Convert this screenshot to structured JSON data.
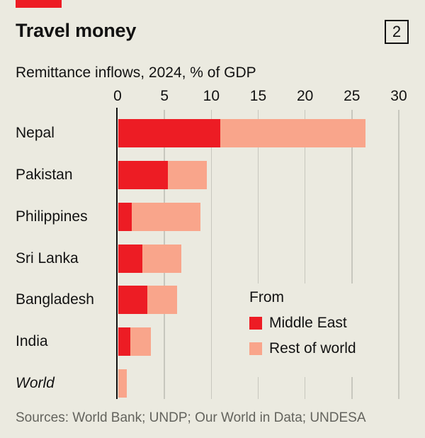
{
  "page": {
    "title": "Travel money",
    "subtitle": "Remittance inflows, 2024, % of GDP",
    "index_badge": "2",
    "sources": "Sources: World Bank; UNDP; Our World in Data; UNDESA"
  },
  "colors": {
    "background": "#ebeae0",
    "accent_red": "#ed1c24",
    "middle_east": "#ed1c24",
    "rest_of_world": "#f9a58b",
    "gridline": "#c7c7be",
    "axis": "#121212",
    "text": "#121212",
    "sources_text": "#63635d"
  },
  "legend": {
    "title": "From",
    "items": [
      {
        "label": "Middle East",
        "color_key": "middle_east"
      },
      {
        "label": "Rest of world",
        "color_key": "rest_of_world"
      }
    ]
  },
  "chart_data": {
    "type": "bar",
    "orientation": "horizontal",
    "stacked": true,
    "title": "Travel money",
    "subtitle": "Remittance inflows, 2024, % of GDP",
    "xlabel": "% of GDP",
    "xlim": [
      0,
      30
    ],
    "xticks": [
      0,
      5,
      10,
      15,
      20,
      25,
      30
    ],
    "grid": true,
    "legend_position": "inside-lower-right",
    "categories": [
      "Nepal",
      "Pakistan",
      "Philippines",
      "Sri Lanka",
      "Bangladesh",
      "India",
      "World"
    ],
    "italic_categories": [
      "World"
    ],
    "series": [
      {
        "name": "Middle East",
        "values": [
          10.9,
          5.3,
          1.5,
          2.6,
          3.1,
          1.3,
          0
        ]
      },
      {
        "name": "Rest of world",
        "values": [
          15.5,
          4.2,
          7.3,
          4.2,
          3.2,
          2.2,
          0.95
        ]
      }
    ],
    "totals": [
      26.4,
      9.5,
      8.8,
      6.8,
      6.3,
      3.5,
      0.95
    ]
  }
}
